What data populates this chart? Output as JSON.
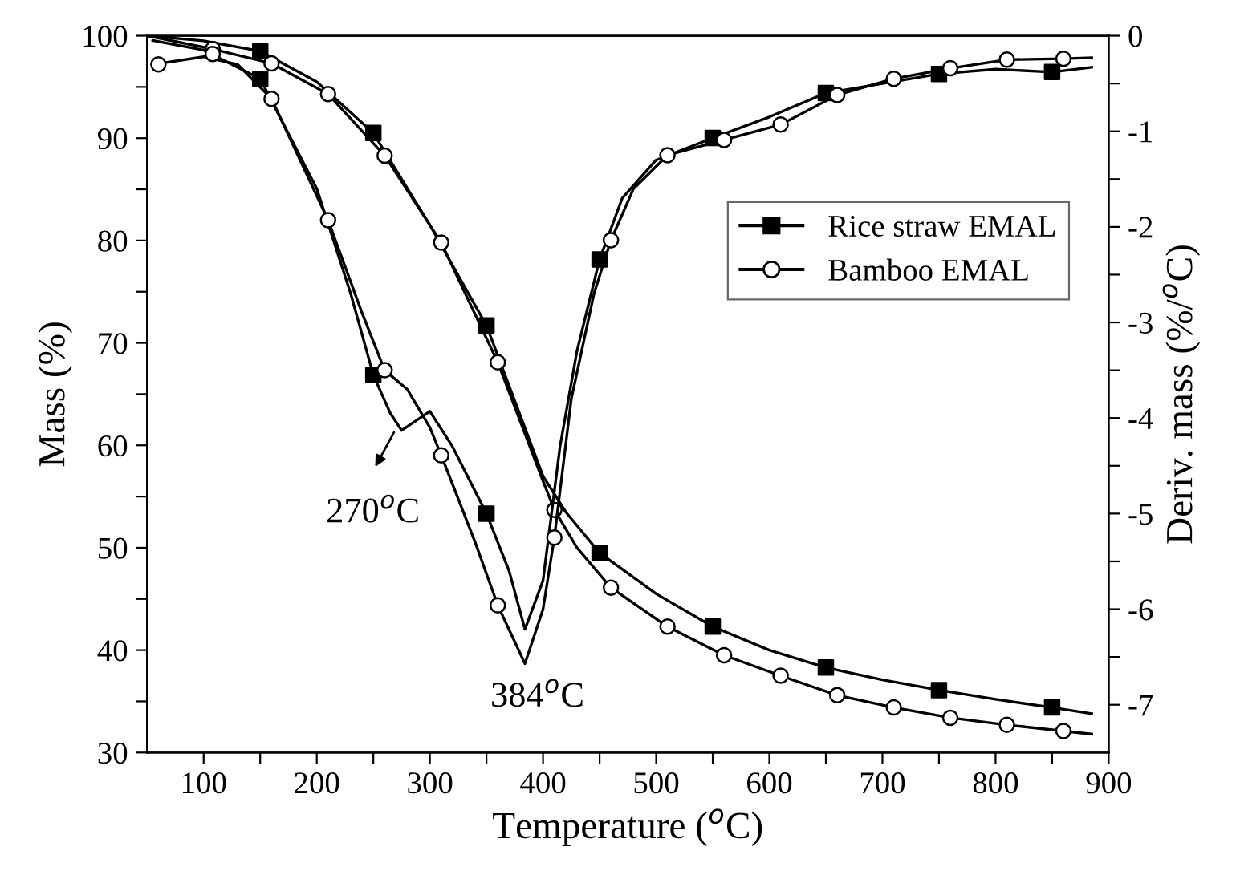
{
  "chart_data": {
    "type": "line",
    "xlabel": "Temperature ($^{o}$C)",
    "ylabel": "Mass (%)",
    "y2label": "Deriv. mass (%/$^{o}$C)",
    "xlim": [
      50,
      900
    ],
    "xticks": [
      100,
      {
        "value": 150,
        "label": null
      },
      200,
      {
        "value": 250,
        "label": null
      },
      300,
      {
        "value": 350,
        "label": null
      },
      400,
      {
        "value": 450,
        "label": null
      },
      500,
      {
        "value": 550,
        "label": null
      },
      600,
      {
        "value": 650,
        "label": null
      },
      700,
      {
        "value": 750,
        "label": null
      },
      800,
      {
        "value": 850,
        "label": null
      },
      900
    ],
    "ylim": [
      30,
      100
    ],
    "yticks": [
      30,
      {
        "value": 35,
        "label": null
      },
      40,
      {
        "value": 45,
        "label": null
      },
      50,
      {
        "value": 55,
        "label": null
      },
      60,
      {
        "value": 65,
        "label": null
      },
      70,
      {
        "value": 75,
        "label": null
      },
      80,
      {
        "value": 85,
        "label": null
      },
      90,
      {
        "value": 95,
        "label": null
      },
      100
    ],
    "y2lim": [
      -7.5,
      0
    ],
    "y2ticks": [
      -7,
      {
        "value": -6.5,
        "label": null
      },
      -6,
      {
        "value": -5.5,
        "label": null
      },
      -5,
      {
        "value": -4.5,
        "label": null
      },
      -4,
      {
        "value": -3.5,
        "label": null
      },
      -3,
      {
        "value": -2.5,
        "label": null
      },
      -2,
      {
        "value": -1.5,
        "label": null
      },
      -1,
      {
        "value": -0.5,
        "label": null
      },
      0
    ],
    "grid": false,
    "legend": "right",
    "line_style": "solid",
    "annotations": [
      "270$^{o}$C",
      "384$^{o}$C"
    ],
    "series": [
      {
        "color": "#000000",
        "marker": "none",
        "x": [
          50,
          100,
          150,
          200,
          250,
          300,
          350,
          400,
          420,
          450,
          500,
          550,
          600,
          650,
          700,
          750,
          800,
          850,
          885
        ],
        "values": [
          100,
          99.5,
          98.5,
          95.5,
          90.5,
          81.5,
          71.7,
          57,
          53.5,
          49.5,
          45.5,
          42.3,
          40,
          38.3,
          37.1,
          36.1,
          35.2,
          34.4,
          33.8
        ]
      },
      {
        "color": "#000000",
        "marker": "none",
        "x": [
          50,
          108,
          160,
          210,
          260,
          310,
          360,
          400,
          410,
          430,
          460,
          510,
          560,
          610,
          660,
          710,
          760,
          810,
          860,
          885
        ],
        "values": [
          100,
          98.7,
          97.3,
          94.3,
          88.3,
          79.8,
          68.1,
          56.5,
          53.7,
          50,
          46.1,
          42.3,
          39.5,
          37.5,
          35.6,
          34.4,
          33.4,
          32.7,
          32.1,
          31.8
        ]
      },
      {
        "axis": "y2",
        "color": "#000000",
        "marker": "none",
        "x": [
          55,
          100,
          150,
          200,
          230,
          250,
          265,
          275,
          300,
          320,
          350,
          370,
          384,
          400,
          415,
          430,
          450,
          470,
          500,
          550,
          600,
          650,
          700,
          750,
          800,
          850,
          885
        ],
        "values": [
          -0.05,
          -0.15,
          -0.45,
          -1.6,
          -2.7,
          -3.55,
          -3.95,
          -4.13,
          -3.93,
          -4.3,
          -5.0,
          -5.6,
          -6.21,
          -5.7,
          -4.3,
          -3.3,
          -2.34,
          -1.7,
          -1.3,
          -1.07,
          -0.85,
          -0.6,
          -0.5,
          -0.4,
          -0.35,
          -0.38,
          -0.33
        ]
      },
      {
        "axis": "y2",
        "color": "#000000",
        "marker": "none",
        "x": [
          55,
          100,
          130,
          160,
          210,
          240,
          260,
          280,
          300,
          310,
          340,
          360,
          384,
          400,
          410,
          425,
          445,
          460,
          480,
          510,
          560,
          610,
          660,
          710,
          760,
          810,
          860,
          885
        ],
        "values": [
          -0.3,
          -0.22,
          -0.3,
          -0.66,
          -1.93,
          -2.9,
          -3.5,
          -3.7,
          -4.1,
          -4.39,
          -5.3,
          -5.96,
          -6.57,
          -6.0,
          -5.25,
          -3.8,
          -2.7,
          -2.14,
          -1.6,
          -1.25,
          -1.09,
          -0.93,
          -0.62,
          -0.45,
          -0.34,
          -0.25,
          -0.24,
          -0.23
        ]
      },
      {
        "type": "scatter",
        "name": "Rice straw EMAL",
        "color": "#000000",
        "marker": "square",
        "x": [
          150,
          250,
          350,
          450,
          550,
          650,
          750,
          850
        ],
        "values": [
          98.5,
          90.5,
          71.7,
          49.5,
          42.3,
          38.3,
          36.1,
          34.4
        ]
      },
      {
        "type": "scatter",
        "name": "Bamboo EMAL",
        "color": "#000000",
        "marker": "circle",
        "x": [
          108,
          160,
          210,
          260,
          310,
          360,
          410,
          460,
          510,
          560,
          610,
          660,
          710,
          760,
          810,
          860
        ],
        "values": [
          98.7,
          97.3,
          94.3,
          88.3,
          79.8,
          68.1,
          53.7,
          46.1,
          42.3,
          39.5,
          37.5,
          35.6,
          34.4,
          33.4,
          32.7,
          32.1
        ]
      },
      {
        "type": "scatter",
        "axis": "y2",
        "color": "#000000",
        "marker": "square",
        "x": [
          150,
          250,
          350,
          450,
          550,
          650,
          750,
          850
        ],
        "values": [
          -0.45,
          -3.55,
          -5.0,
          -2.34,
          -1.07,
          -0.6,
          -0.4,
          -0.38
        ]
      },
      {
        "type": "scatter",
        "axis": "y2",
        "color": "#000000",
        "marker": "circle",
        "x": [
          60,
          108,
          160,
          210,
          260,
          310,
          360,
          410,
          460,
          510,
          560,
          610,
          660,
          710,
          760,
          810,
          860
        ],
        "values": [
          -0.3,
          -0.19,
          -0.66,
          -1.93,
          -3.5,
          -4.39,
          -5.96,
          -5.25,
          -2.14,
          -1.25,
          -1.09,
          -0.93,
          -0.62,
          -0.45,
          -0.34,
          -0.25,
          -0.24
        ]
      }
    ]
  }
}
